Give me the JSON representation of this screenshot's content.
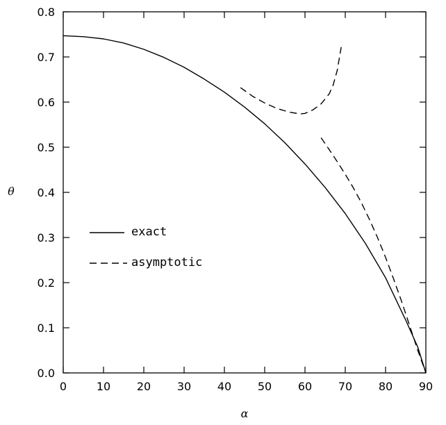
{
  "chart_data": {
    "type": "line",
    "xlabel": "α",
    "ylabel": "θ",
    "xlim": [
      0,
      90
    ],
    "ylim": [
      0,
      0.8
    ],
    "x_ticks": [
      "0",
      "10",
      "20",
      "30",
      "40",
      "50",
      "60",
      "70",
      "80",
      "90"
    ],
    "y_ticks": [
      "0.0",
      "0.1",
      "0.2",
      "0.3",
      "0.4",
      "0.5",
      "0.6",
      "0.7",
      "0.8"
    ],
    "grid": false,
    "legend_position": "center-left",
    "series": [
      {
        "name": "exact",
        "style": "solid",
        "x": [
          0,
          5,
          10,
          15,
          20,
          25,
          30,
          35,
          40,
          45,
          50,
          55,
          60,
          65,
          70,
          75,
          80,
          85,
          88,
          90
        ],
        "y": [
          0.747,
          0.745,
          0.74,
          0.731,
          0.717,
          0.699,
          0.677,
          0.651,
          0.622,
          0.589,
          0.552,
          0.51,
          0.463,
          0.411,
          0.353,
          0.287,
          0.211,
          0.117,
          0.057,
          0.0
        ]
      },
      {
        "name": "asymptotic",
        "style": "dashed",
        "segments": [
          {
            "x": [
              44,
              47,
              50,
              53,
              56,
              58,
              59,
              60,
              62,
              64,
              66,
              67,
              68,
              69
            ],
            "y": [
              0.632,
              0.613,
              0.598,
              0.586,
              0.578,
              0.575,
              0.574,
              0.575,
              0.583,
              0.596,
              0.618,
              0.638,
              0.67,
              0.722
            ]
          },
          {
            "x": [
              64,
              66,
              68,
              70,
              72,
              74,
              76,
              78,
              80,
              82,
              84,
              86,
              88,
              90
            ],
            "y": [
              0.521,
              0.495,
              0.468,
              0.44,
              0.41,
              0.377,
              0.34,
              0.3,
              0.256,
              0.208,
              0.158,
              0.104,
              0.05,
              0.0
            ]
          }
        ]
      }
    ]
  }
}
